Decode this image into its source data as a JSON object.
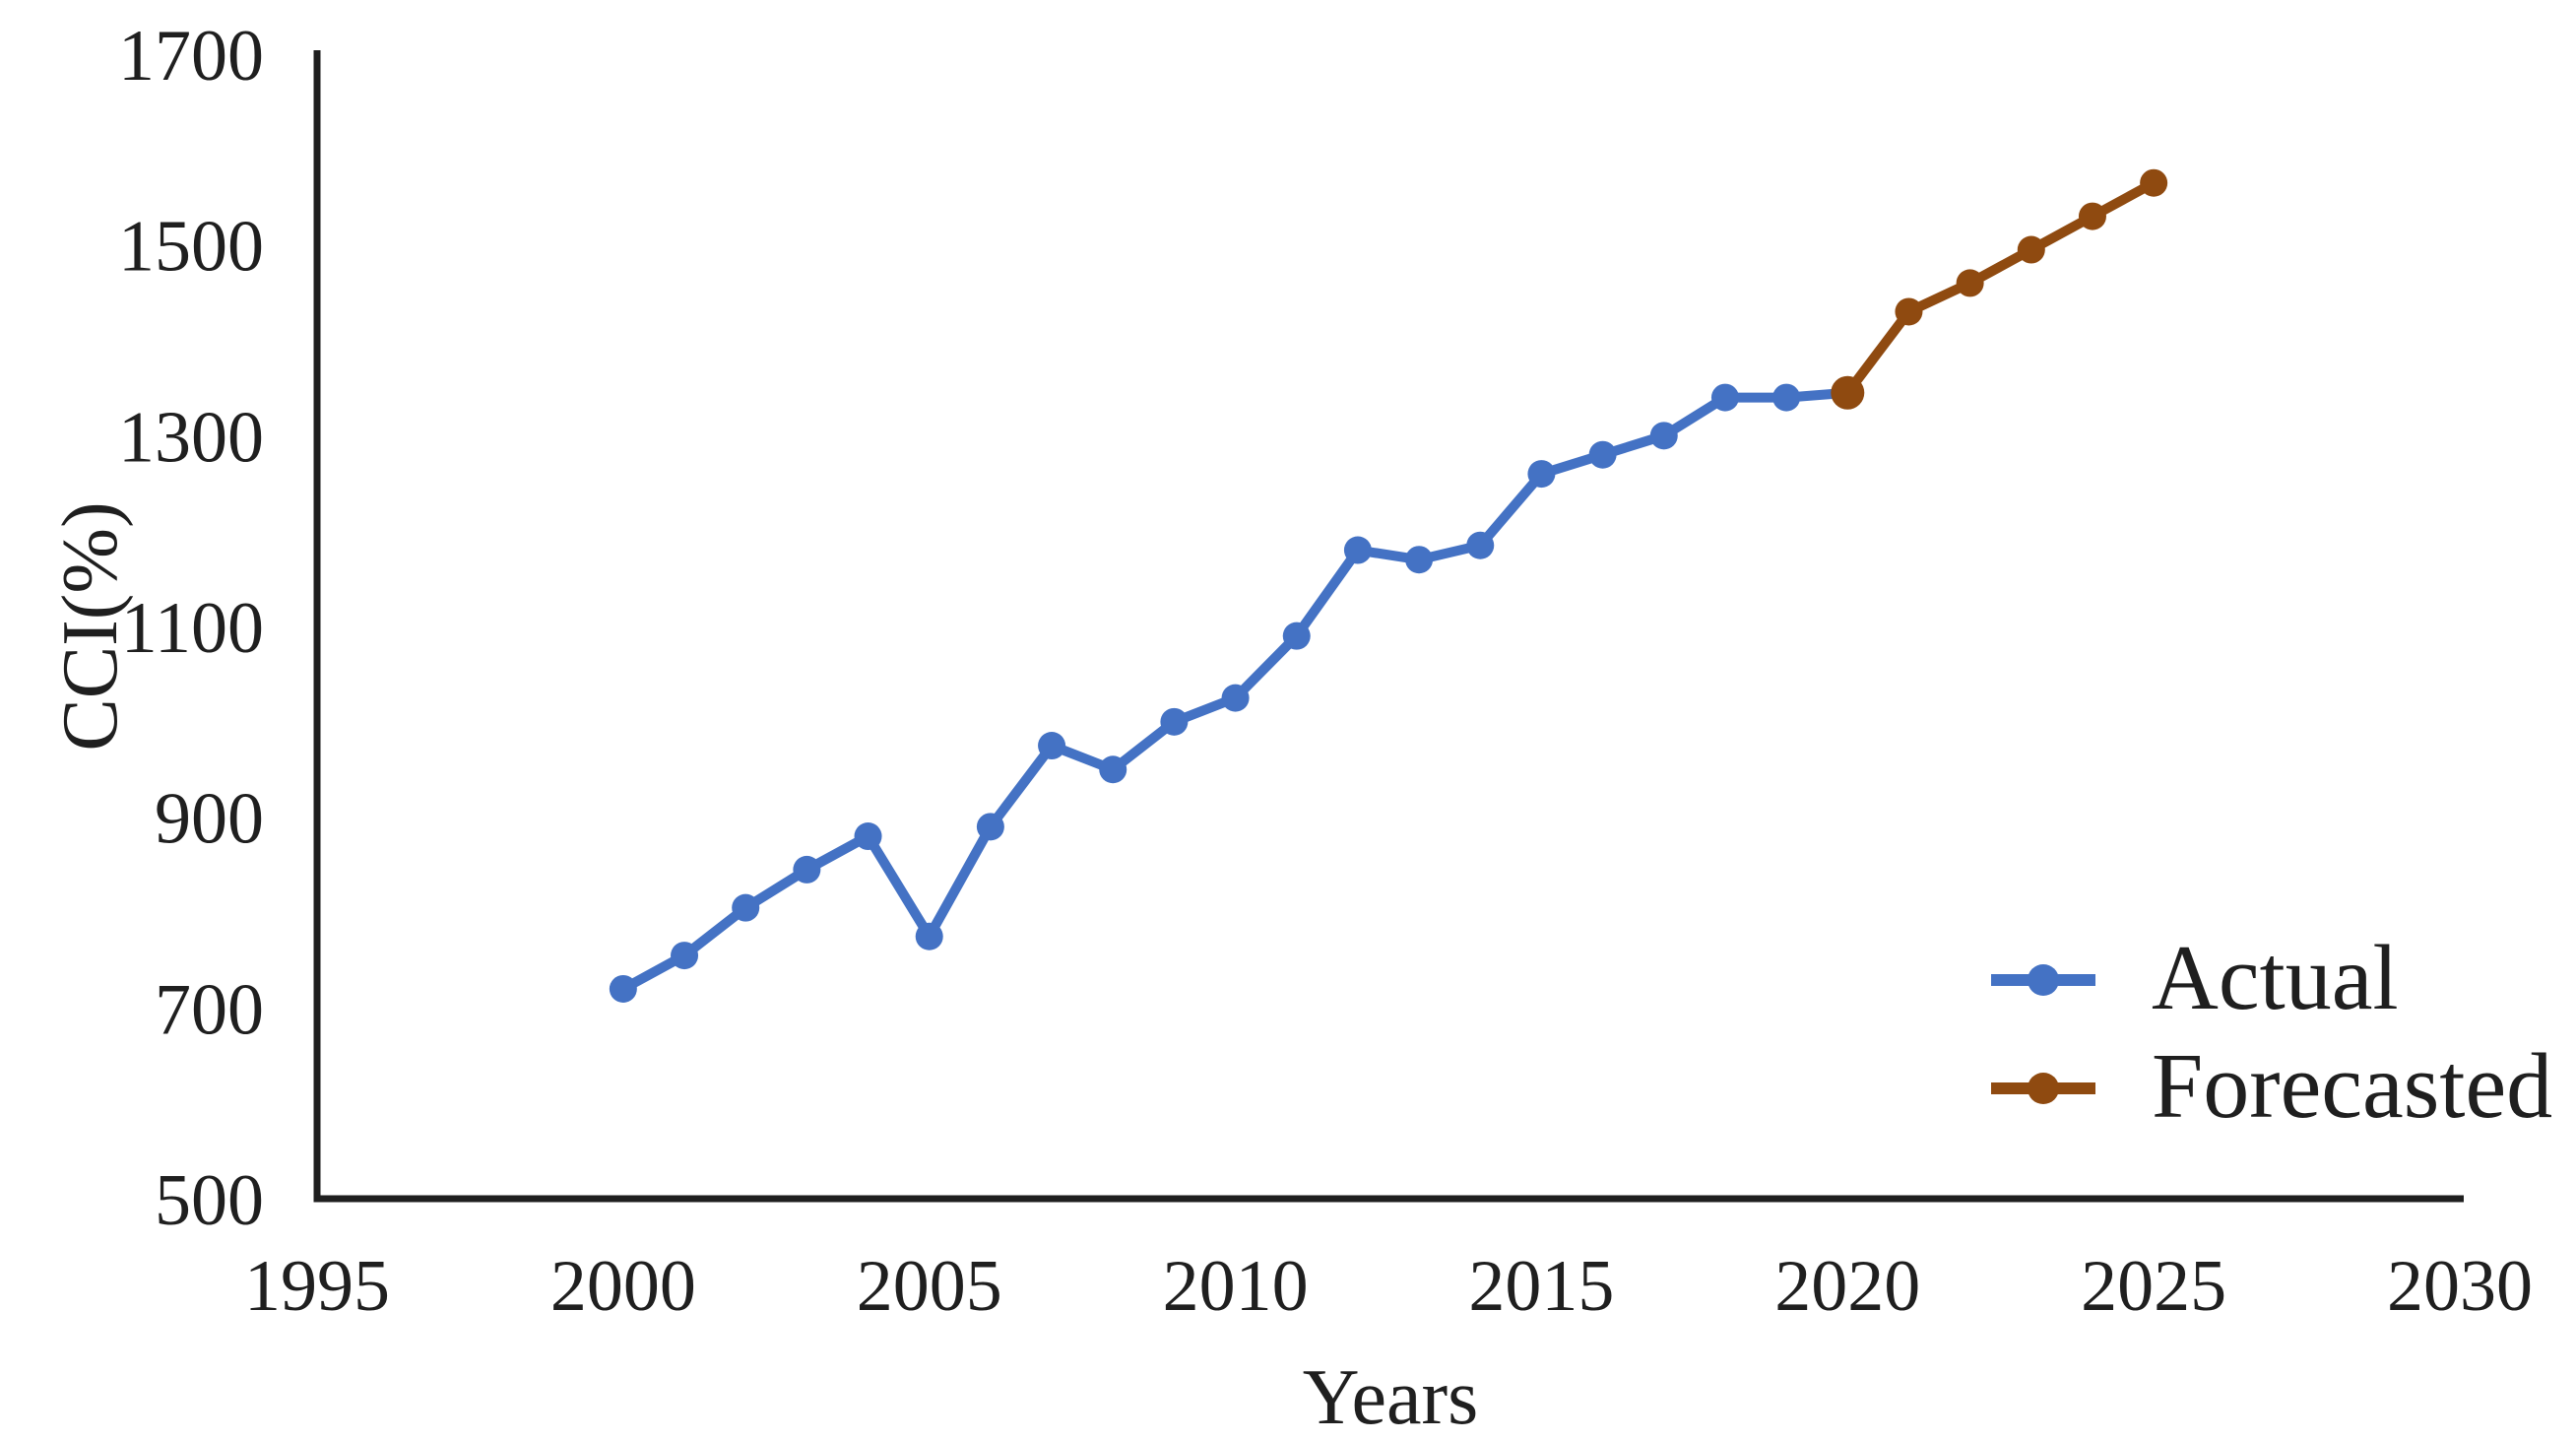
{
  "chart_data": {
    "type": "line",
    "title": "",
    "xlabel": "Years",
    "ylabel": "CCI(%)",
    "xlim": [
      1995,
      2030
    ],
    "ylim": [
      500,
      1700
    ],
    "x_ticks": [
      1995,
      2000,
      2005,
      2010,
      2015,
      2020,
      2025,
      2030
    ],
    "y_ticks": [
      500,
      700,
      900,
      1100,
      1300,
      1500,
      1700
    ],
    "grid": false,
    "legend_position": "lower-right",
    "axis_color": "#1f1f1f",
    "series": [
      {
        "name": "Actual",
        "color": "#4472C4",
        "marker": "circle",
        "x": [
          2000,
          2001,
          2002,
          2003,
          2004,
          2005,
          2006,
          2007,
          2008,
          2009,
          2010,
          2011,
          2012,
          2013,
          2014,
          2015,
          2016,
          2017,
          2018,
          2019,
          2020
        ],
        "values": [
          720,
          755,
          805,
          845,
          880,
          775,
          890,
          975,
          950,
          1000,
          1025,
          1090,
          1180,
          1170,
          1185,
          1260,
          1280,
          1300,
          1340,
          1340,
          1345
        ]
      },
      {
        "name": "Forecasted",
        "color": "#8F4A10",
        "marker": "circle",
        "x": [
          2020,
          2021,
          2022,
          2023,
          2024,
          2025
        ],
        "values": [
          1345,
          1430,
          1460,
          1495,
          1530,
          1565
        ]
      }
    ]
  },
  "legend": {
    "items": [
      {
        "label": "Actual",
        "color": "#4472C4"
      },
      {
        "label": "Forecasted",
        "color": "#8F4A10"
      }
    ]
  }
}
